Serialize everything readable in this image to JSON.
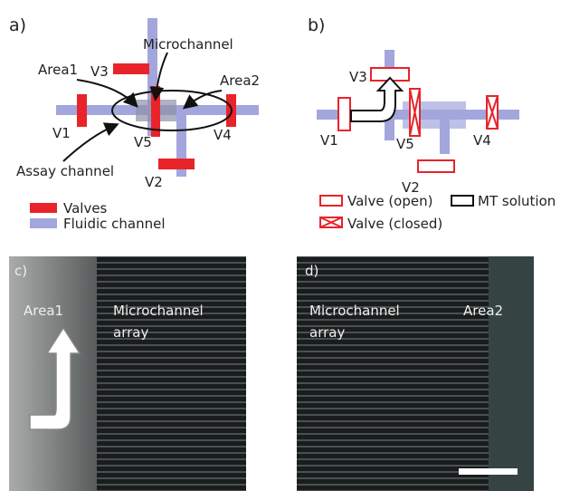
{
  "panel_a": {
    "label": "a)",
    "callouts": [
      "Microchannel",
      "Area1",
      "Area2",
      "Assay channel"
    ],
    "valves": [
      "V1",
      "V2",
      "V3",
      "V4",
      "V5"
    ],
    "legend": [
      "Valves",
      "Fluidic channel"
    ]
  },
  "panel_b": {
    "label": "b)",
    "valves": [
      "V1",
      "V2",
      "V3",
      "V4",
      "V5"
    ],
    "legend": [
      "Valve (open)",
      "MT solution",
      "Valve (closed)"
    ]
  },
  "panel_c": {
    "label": "c)",
    "texts": [
      "Area1",
      "Microchannel",
      "array"
    ]
  },
  "panel_d": {
    "label": "d)",
    "texts": [
      "Microchannel",
      "array",
      "Area2"
    ]
  }
}
